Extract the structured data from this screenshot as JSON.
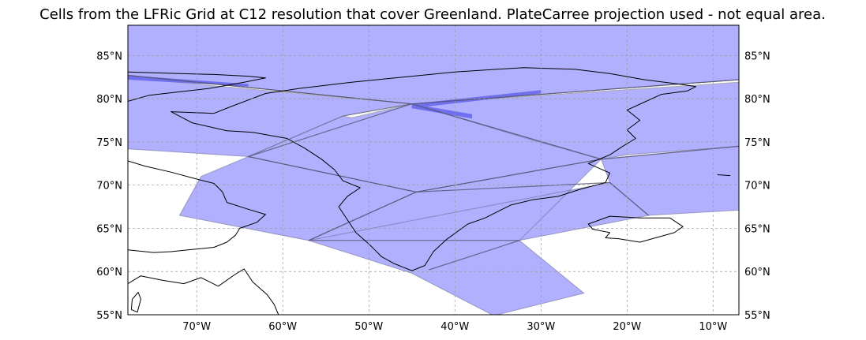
{
  "title": "Cells from the LFRic Grid at C12 resolution that cover Greenland. PlateCarree projection used - not equal area.",
  "map": {
    "projection": "PlateCarree",
    "extent": {
      "lon_min": -78,
      "lon_max": -7,
      "lat_min": 55,
      "lat_max": 88.5
    },
    "gridlines": true,
    "x_ticks": [
      {
        "lon": -70,
        "label": "70°W"
      },
      {
        "lon": -60,
        "label": "60°W"
      },
      {
        "lon": -50,
        "label": "50°W"
      },
      {
        "lon": -40,
        "label": "40°W"
      },
      {
        "lon": -30,
        "label": "30°W"
      },
      {
        "lon": -20,
        "label": "20°W"
      },
      {
        "lon": -10,
        "label": "10°W"
      }
    ],
    "y_ticks": [
      {
        "lat": 85,
        "label": "85°N"
      },
      {
        "lat": 80,
        "label": "80°N"
      },
      {
        "lat": 75,
        "label": "75°N"
      },
      {
        "lat": 70,
        "label": "70°N"
      },
      {
        "lat": 65,
        "label": "65°N"
      },
      {
        "lat": 60,
        "label": "60°N"
      },
      {
        "lat": 55,
        "label": "55°N"
      }
    ],
    "colors": {
      "cell_fill": "#b0b0ff",
      "cell_highlight": "#7070ee",
      "cell_edge": "#555577",
      "coastline": "#000000",
      "gridline": "#999999"
    },
    "cells": [
      {
        "name": "cell-north-band",
        "points": [
          [
            -78,
            88.5
          ],
          [
            -7,
            88.5
          ],
          [
            -7,
            82.2
          ],
          [
            -45,
            79.4
          ],
          [
            -78,
            82.7
          ]
        ]
      },
      {
        "name": "cell-west-arctic",
        "points": [
          [
            -78,
            82.7
          ],
          [
            -45,
            79.4
          ],
          [
            -53,
            78
          ],
          [
            -64,
            73.3
          ],
          [
            -78,
            74.2
          ]
        ]
      },
      {
        "name": "cell-greenland-north-center",
        "points": [
          [
            -45,
            79.4
          ],
          [
            -7,
            82.2
          ],
          [
            -7,
            74.5
          ],
          [
            -20,
            73.5
          ],
          [
            -23,
            73
          ],
          [
            -31,
            75.2
          ],
          [
            -45,
            79.4
          ]
        ]
      },
      {
        "name": "cell-greenland-west-center",
        "points": [
          [
            -64,
            73.3
          ],
          [
            -53,
            78
          ],
          [
            -45,
            79.4
          ],
          [
            -23,
            73
          ],
          [
            -44.5,
            69.2
          ]
        ]
      },
      {
        "name": "cell-baffin-south",
        "points": [
          [
            -64,
            73.3
          ],
          [
            -44.5,
            69.2
          ],
          [
            -57,
            63.6
          ],
          [
            -72,
            66.5
          ],
          [
            -69.5,
            71
          ]
        ]
      },
      {
        "name": "cell-greenland-south-center",
        "points": [
          [
            -44.5,
            69.2
          ],
          [
            -23,
            73
          ],
          [
            -32.5,
            63.6
          ],
          [
            -57,
            63.6
          ]
        ]
      },
      {
        "name": "cell-east-coast",
        "points": [
          [
            -23,
            73
          ],
          [
            -7,
            74.5
          ],
          [
            -7,
            67.1
          ],
          [
            -17.5,
            66.5
          ],
          [
            -22,
            70.3
          ]
        ]
      },
      {
        "name": "cell-southeast",
        "points": [
          [
            -57,
            63.6
          ],
          [
            -32.5,
            63.6
          ],
          [
            -17.5,
            66.5
          ],
          [
            -22,
            70.3
          ]
        ]
      },
      {
        "name": "cell-south-tip",
        "points": [
          [
            -57,
            63.6
          ],
          [
            -32.5,
            63.6
          ],
          [
            -25,
            57.5
          ],
          [
            -35.5,
            54.9
          ],
          [
            -45,
            59.8
          ]
        ]
      }
    ],
    "highlight_bands": [
      {
        "name": "highlight-band-west",
        "points": [
          [
            -78,
            82.2
          ],
          [
            -64,
            81.4
          ],
          [
            -64,
            81.7
          ],
          [
            -78,
            82.7
          ]
        ]
      },
      {
        "name": "highlight-band-center",
        "points": [
          [
            -45,
            79.4
          ],
          [
            -38,
            78.2
          ],
          [
            -38,
            77.7
          ],
          [
            -45,
            78.9
          ]
        ]
      },
      {
        "name": "highlight-band-east",
        "points": [
          [
            -45,
            79.4
          ],
          [
            -30,
            81
          ],
          [
            -30,
            80.6
          ],
          [
            -45,
            78.9
          ]
        ]
      }
    ],
    "white_gaps": [
      {
        "name": "gap-north-west",
        "points": [
          [
            -78,
            82.7
          ],
          [
            -45,
            79.4
          ],
          [
            -78,
            82.4
          ]
        ]
      },
      {
        "name": "gap-north-east",
        "points": [
          [
            -45,
            79.4
          ],
          [
            -7,
            82.2
          ],
          [
            -7,
            81.9
          ]
        ]
      },
      {
        "name": "gap-mid-west",
        "points": [
          [
            -45,
            79.4
          ],
          [
            -53,
            78
          ],
          [
            -52,
            77.8
          ]
        ]
      }
    ],
    "cell_edges": [
      {
        "name": "edge-west-central",
        "points": [
          [
            -64,
            73.3
          ],
          [
            -44.5,
            69.2
          ],
          [
            -22,
            70.3
          ],
          [
            -17.5,
            66.5
          ]
        ]
      },
      {
        "name": "edge-south-central",
        "points": [
          [
            -57,
            63.6
          ],
          [
            -44.5,
            69.2
          ],
          [
            -23,
            73
          ],
          [
            -7,
            74.5
          ]
        ]
      },
      {
        "name": "edge-south-east",
        "points": [
          [
            -43,
            60.2
          ],
          [
            -32.5,
            63.6
          ]
        ]
      },
      {
        "name": "edge-north-diagonal-a",
        "points": [
          [
            -78,
            82.7
          ],
          [
            -45,
            79.4
          ],
          [
            -23,
            73
          ]
        ]
      },
      {
        "name": "edge-north-diagonal-b",
        "points": [
          [
            -64,
            73.3
          ],
          [
            -45,
            79.4
          ],
          [
            -7,
            82.2
          ]
        ]
      }
    ],
    "coastlines": [
      {
        "name": "greenland-coastline",
        "closed": true,
        "points": [
          [
            -73,
            78.5
          ],
          [
            -68,
            78.3
          ],
          [
            -66,
            79.1
          ],
          [
            -62,
            80.6
          ],
          [
            -58,
            81.2
          ],
          [
            -52,
            81.9
          ],
          [
            -46,
            82.5
          ],
          [
            -40,
            83.1
          ],
          [
            -32,
            83.6
          ],
          [
            -26,
            83.4
          ],
          [
            -22,
            82.9
          ],
          [
            -18,
            82.2
          ],
          [
            -14,
            81.7
          ],
          [
            -12,
            81.4
          ],
          [
            -13,
            80.9
          ],
          [
            -16,
            80.5
          ],
          [
            -18,
            79.6
          ],
          [
            -20,
            78.7
          ],
          [
            -18.5,
            77.5
          ],
          [
            -20,
            76.4
          ],
          [
            -19,
            75.4
          ],
          [
            -20.5,
            74.5
          ],
          [
            -22,
            73.5
          ],
          [
            -24.5,
            72.5
          ],
          [
            -22,
            71.4
          ],
          [
            -22.5,
            70.3
          ],
          [
            -25.5,
            69.5
          ],
          [
            -28,
            68.7
          ],
          [
            -31,
            68.3
          ],
          [
            -33.5,
            67.7
          ],
          [
            -36.5,
            66.2
          ],
          [
            -38.5,
            65.5
          ],
          [
            -41,
            63.7
          ],
          [
            -42.5,
            62.3
          ],
          [
            -43.5,
            60.7
          ],
          [
            -45,
            60.1
          ],
          [
            -47,
            60.9
          ],
          [
            -48.5,
            61.7
          ],
          [
            -50,
            63.2
          ],
          [
            -51.5,
            64.5
          ],
          [
            -52.5,
            66
          ],
          [
            -53.5,
            67.5
          ],
          [
            -52.5,
            68.7
          ],
          [
            -51,
            69.7
          ],
          [
            -53,
            70.5
          ],
          [
            -54,
            71.8
          ],
          [
            -55.5,
            73
          ],
          [
            -57.5,
            74.3
          ],
          [
            -59.5,
            75.4
          ],
          [
            -63.5,
            76.1
          ],
          [
            -66.5,
            76.3
          ],
          [
            -70.5,
            77.2
          ],
          [
            -73,
            78.5
          ]
        ]
      },
      {
        "name": "ellesmere-coastline",
        "closed": false,
        "points": [
          [
            -78,
            79.7
          ],
          [
            -75.5,
            80.4
          ],
          [
            -72,
            80.8
          ],
          [
            -68.5,
            81.2
          ],
          [
            -64.5,
            81.9
          ],
          [
            -62,
            82.4
          ],
          [
            -64,
            82.6
          ],
          [
            -68,
            82.8
          ],
          [
            -72,
            82.9
          ],
          [
            -78,
            83.1
          ]
        ]
      },
      {
        "name": "baffin-coastline",
        "closed": false,
        "points": [
          [
            -78,
            72.8
          ],
          [
            -76,
            72.2
          ],
          [
            -73,
            71.5
          ],
          [
            -70,
            70.7
          ],
          [
            -68,
            70.2
          ],
          [
            -67,
            69.2
          ],
          [
            -66.5,
            68
          ],
          [
            -64,
            67.2
          ],
          [
            -62,
            66.6
          ],
          [
            -63,
            65.7
          ],
          [
            -65,
            65
          ],
          [
            -65.5,
            64.2
          ],
          [
            -66.5,
            63.4
          ],
          [
            -68,
            62.8
          ],
          [
            -71,
            62.5
          ],
          [
            -73,
            62.3
          ],
          [
            -75,
            62.2
          ],
          [
            -78,
            62.5
          ]
        ]
      },
      {
        "name": "labrador-coastline",
        "closed": false,
        "points": [
          [
            -78,
            58.6
          ],
          [
            -76.5,
            59.5
          ],
          [
            -74,
            59
          ],
          [
            -71.5,
            58.6
          ],
          [
            -69.5,
            59.3
          ],
          [
            -67.5,
            58.3
          ],
          [
            -65.5,
            59.7
          ],
          [
            -64.5,
            60.3
          ],
          [
            -63.5,
            58.8
          ],
          [
            -61.8,
            57.3
          ],
          [
            -61,
            56.2
          ],
          [
            -60.5,
            55
          ]
        ]
      },
      {
        "name": "hudson-island-coastline",
        "closed": true,
        "points": [
          [
            -77.5,
            56.8
          ],
          [
            -76.8,
            57.6
          ],
          [
            -76.5,
            56.8
          ],
          [
            -76.9,
            55.3
          ],
          [
            -77.6,
            55.6
          ]
        ]
      },
      {
        "name": "svalbard-coastline",
        "closed": false,
        "points": [
          [
            -9.5,
            71.2
          ],
          [
            -8,
            71.1
          ]
        ]
      },
      {
        "name": "iceland-coastline",
        "closed": true,
        "points": [
          [
            -24.5,
            65.5
          ],
          [
            -22,
            66.4
          ],
          [
            -18.5,
            66.2
          ],
          [
            -15,
            66.2
          ],
          [
            -13.5,
            65.2
          ],
          [
            -14.5,
            64.5
          ],
          [
            -18.5,
            63.4
          ],
          [
            -21,
            63.8
          ],
          [
            -22.5,
            63.9
          ],
          [
            -22,
            64.5
          ],
          [
            -24,
            64.9
          ]
        ]
      }
    ]
  }
}
